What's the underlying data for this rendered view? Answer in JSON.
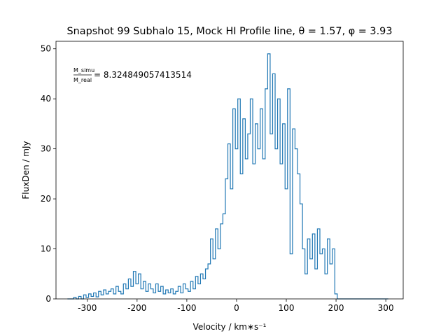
{
  "chart_data": {
    "type": "line",
    "title": "Snapshot 99 Subhalo 15, Mock HI Profile line, θ = 1.57, φ = 3.93",
    "xlabel": "Velocity / km∗s⁻¹",
    "ylabel": "FluxDen / mJy",
    "annotation": {
      "numerator": "M_simu",
      "denominator": "M_real",
      "value": "= 8.324849057413514"
    },
    "xlim": [
      -363,
      335
    ],
    "ylim": [
      0,
      51.5
    ],
    "xticks": [
      -300,
      -200,
      -100,
      0,
      100,
      200,
      300
    ],
    "yticks": [
      0,
      10,
      20,
      30,
      40,
      50
    ],
    "step": true,
    "x": [
      -340,
      -335,
      -330,
      -325,
      -320,
      -315,
      -310,
      -305,
      -300,
      -295,
      -290,
      -285,
      -280,
      -275,
      -270,
      -265,
      -260,
      -255,
      -250,
      -245,
      -240,
      -235,
      -230,
      -225,
      -220,
      -215,
      -210,
      -205,
      -200,
      -195,
      -190,
      -185,
      -180,
      -175,
      -170,
      -165,
      -160,
      -155,
      -150,
      -145,
      -140,
      -135,
      -130,
      -125,
      -120,
      -115,
      -110,
      -105,
      -100,
      -95,
      -90,
      -85,
      -80,
      -75,
      -70,
      -65,
      -60,
      -55,
      -50,
      -45,
      -40,
      -35,
      -30,
      -25,
      -20,
      -15,
      -10,
      -5,
      0,
      5,
      10,
      15,
      20,
      25,
      30,
      35,
      40,
      45,
      50,
      55,
      60,
      65,
      70,
      75,
      80,
      85,
      90,
      95,
      100,
      105,
      110,
      115,
      120,
      125,
      130,
      135,
      140,
      145,
      150,
      155,
      160,
      165,
      170,
      175,
      180,
      185,
      190,
      195,
      200,
      205,
      210,
      215,
      220,
      225,
      230,
      235,
      240,
      245,
      250,
      255,
      260,
      265,
      270,
      275,
      280,
      285,
      290,
      295,
      300,
      305
    ],
    "series": [
      {
        "name": "HI profile",
        "color": "#1f77b4",
        "values": [
          0,
          0,
          0,
          0.3,
          0,
          0.5,
          0,
          0.8,
          0.3,
          1,
          0.5,
          1.2,
          0.4,
          1.5,
          0.8,
          1.8,
          1,
          1.5,
          2,
          1,
          2.5,
          1.5,
          1,
          3,
          2,
          4,
          2.5,
          5.5,
          3,
          5,
          2,
          3.5,
          1.5,
          3,
          2,
          1.2,
          3,
          1.5,
          2.5,
          1,
          1.8,
          1.2,
          2,
          1,
          1.5,
          2.5,
          1.2,
          3,
          2,
          1.5,
          3.5,
          2,
          4.5,
          3,
          5,
          4,
          6,
          7,
          12,
          8,
          14,
          10,
          15,
          17,
          24,
          31,
          22,
          38,
          30,
          40,
          25,
          36,
          28,
          33,
          40,
          27,
          35,
          30,
          38,
          28,
          42,
          49,
          33,
          45,
          30,
          40,
          27,
          35,
          22,
          42,
          9,
          34,
          30,
          25,
          19,
          10,
          5,
          12,
          8,
          13,
          6,
          14,
          9,
          10,
          5,
          12,
          7,
          10,
          1,
          0,
          0,
          0,
          0,
          0,
          0,
          0,
          0,
          0,
          0,
          0,
          0,
          0,
          0,
          0,
          0,
          0,
          0,
          0,
          0,
          0
        ]
      }
    ]
  }
}
